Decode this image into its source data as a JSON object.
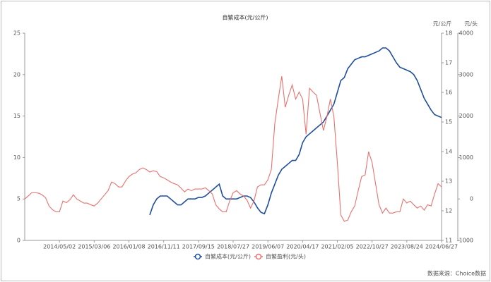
{
  "chart_data": {
    "type": "line",
    "title": "自繁成本(元/公斤)",
    "y2_label": "元/公斤",
    "y3_label": "元/头",
    "source": "数据来源：Choice数据",
    "categories": [
      null,
      null,
      null,
      null,
      null,
      null,
      null,
      null,
      null,
      null,
      "2014/05/02",
      null,
      null,
      null,
      null,
      null,
      null,
      null,
      null,
      null,
      "2015/03/06",
      null,
      null,
      null,
      null,
      null,
      null,
      null,
      null,
      null,
      "2016/01/08",
      null,
      null,
      null,
      null,
      null,
      null,
      null,
      null,
      null,
      "2016/11/11",
      null,
      null,
      null,
      null,
      null,
      null,
      null,
      null,
      null,
      "2017/09/15",
      null,
      null,
      null,
      null,
      null,
      null,
      null,
      null,
      null,
      "2018/07/27",
      null,
      null,
      null,
      null,
      null,
      null,
      null,
      null,
      null,
      "2019/06/07",
      null,
      null,
      null,
      null,
      null,
      null,
      null,
      null,
      null,
      "2020/04/17",
      null,
      null,
      null,
      null,
      null,
      null,
      null,
      null,
      null,
      "2021/02/05",
      null,
      null,
      null,
      null,
      null,
      null,
      null,
      null,
      null,
      "2022/10/27",
      null,
      null,
      null,
      null,
      null,
      null,
      null,
      null,
      null,
      "2023/08/24",
      null,
      null,
      null,
      null,
      null,
      null,
      null,
      null,
      null,
      "2024/06/27"
    ],
    "ylim": [
      0,
      25
    ],
    "yticks": [
      0,
      5,
      10,
      15,
      20,
      25
    ],
    "y2lim": [
      11,
      18
    ],
    "y2ticks": [
      11,
      12,
      13,
      14,
      15,
      16,
      17,
      18
    ],
    "y3lim": [
      -1000,
      4000
    ],
    "y3ticks": [
      -1000,
      0,
      1000,
      2000,
      3000,
      4000
    ],
    "legend": "bottom",
    "series": [
      {
        "name": "自繁成本(元/公斤)",
        "color": "#1f4e9e",
        "axis": "y2",
        "values": [
          null,
          null,
          null,
          null,
          null,
          null,
          null,
          null,
          null,
          null,
          null,
          null,
          null,
          null,
          null,
          null,
          null,
          null,
          null,
          null,
          null,
          null,
          null,
          null,
          null,
          null,
          null,
          null,
          null,
          null,
          null,
          null,
          null,
          null,
          null,
          null,
          11.86,
          12.2,
          12.4,
          12.5,
          12.5,
          12.5,
          12.4,
          12.3,
          12.2,
          12.2,
          12.3,
          12.4,
          12.4,
          12.4,
          12.45,
          12.45,
          12.5,
          12.6,
          12.7,
          12.8,
          12.9,
          12.5,
          12.4,
          12.4,
          12.4,
          12.4,
          12.45,
          12.5,
          12.5,
          12.45,
          12.3,
          12.1,
          11.95,
          11.9,
          12.2,
          12.6,
          12.9,
          13.2,
          13.4,
          13.5,
          13.6,
          13.7,
          13.7,
          13.9,
          14.3,
          14.5,
          14.6,
          14.7,
          14.8,
          14.9,
          15.0,
          15.2,
          15.4,
          15.6,
          16.0,
          16.4,
          16.5,
          16.8,
          16.95,
          17.1,
          17.15,
          17.2,
          17.2,
          17.25,
          17.3,
          17.35,
          17.4,
          17.5,
          17.5,
          17.4,
          17.2,
          17.0,
          16.85,
          16.8,
          16.75,
          16.7,
          16.6,
          16.4,
          16.1,
          15.8,
          15.6,
          15.4,
          15.25,
          15.2,
          15.15
        ]
      },
      {
        "name": "自繁盈利(元/头)",
        "color": "#e8716f",
        "axis": "y3",
        "values": [
          0,
          70,
          150,
          150,
          140,
          100,
          30,
          -170,
          -260,
          -310,
          -310,
          -50,
          -90,
          -20,
          100,
          0,
          -50,
          -100,
          -100,
          -140,
          -170,
          -100,
          0,
          100,
          200,
          410,
          370,
          290,
          290,
          430,
          540,
          600,
          630,
          710,
          750,
          710,
          650,
          680,
          660,
          540,
          510,
          460,
          410,
          370,
          340,
          260,
          170,
          240,
          200,
          240,
          240,
          240,
          270,
          200,
          120,
          -140,
          -240,
          -310,
          -310,
          -50,
          150,
          200,
          120,
          70,
          -30,
          -220,
          -50,
          290,
          340,
          340,
          460,
          710,
          1820,
          2410,
          2960,
          2210,
          2500,
          2750,
          2410,
          2580,
          2410,
          1560,
          2670,
          2580,
          2500,
          2070,
          1650,
          1990,
          2410,
          1990,
          880,
          -390,
          -540,
          -510,
          -310,
          -170,
          200,
          540,
          580,
          1140,
          880,
          370,
          -140,
          -340,
          -220,
          -340,
          -340,
          -310,
          -310,
          0,
          -100,
          -50,
          -140,
          -220,
          -170,
          -270,
          -140,
          -170,
          120,
          370,
          290
        ]
      }
    ]
  }
}
